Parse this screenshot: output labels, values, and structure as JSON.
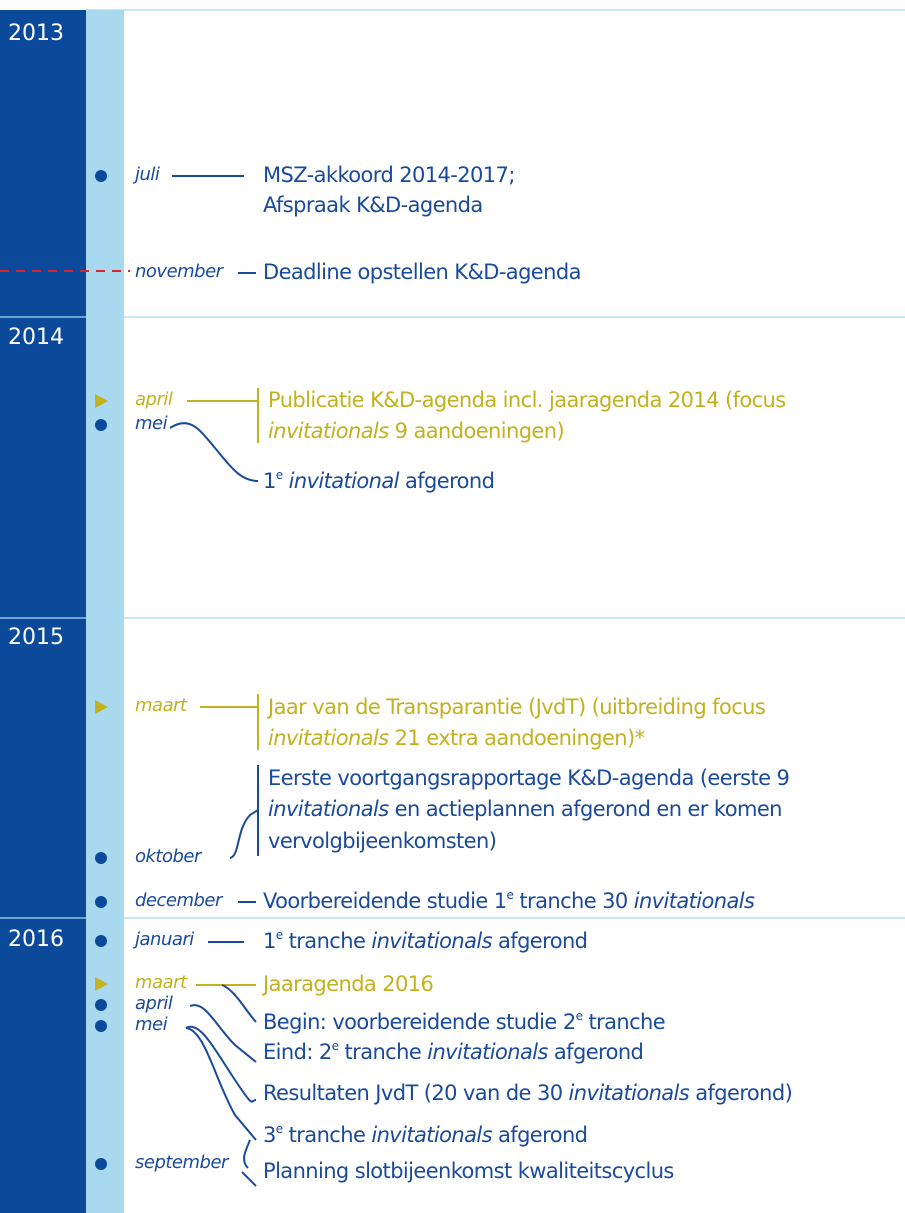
{
  "years": [
    "2013",
    "2014",
    "2015",
    "2016"
  ],
  "months": [
    "juli",
    "november",
    "april",
    "mei",
    "maart",
    "oktober",
    "december",
    "januari",
    "maart",
    "april",
    "mei",
    "september"
  ],
  "lines": [
    [
      "MSZ-akkoord 2014-2017;"
    ],
    [
      "Afspraak K&D-agenda"
    ],
    [
      "Deadline opstellen K&D-agenda"
    ],
    [
      "Publicatie K&D-agenda incl. jaaragenda 2014 (focus"
    ],
    [
      "invitationals",
      " 9 aandoeningen)"
    ],
    [
      "1",
      "e",
      " invitational",
      " afgerond"
    ],
    [
      "Jaar van de Transparantie (JvdT) (uitbreiding focus"
    ],
    [
      "invitationals",
      " 21 extra aandoeningen)*"
    ],
    [
      "Eerste voortgangsrapportage K&D-agenda (eerste 9"
    ],
    [
      "invitationals",
      " en actieplannen afgerond en er komen"
    ],
    [
      "vervolgbijeenkomsten)"
    ],
    [
      "Voorbereidende studie 1",
      "e",
      " tranche 30 ",
      "invitationals"
    ],
    [
      "1",
      "e",
      " tranche ",
      "invitationals",
      " afgerond"
    ],
    [
      "Jaaragenda 2016"
    ],
    [
      "Begin: voorbereidende studie 2",
      "e",
      " tranche"
    ],
    [
      "Eind: 2",
      "e",
      " tranche ",
      "invitationals",
      " afgerond"
    ],
    [
      "Resultaten JvdT (20 van de 30 ",
      "invitationals",
      " afgerond)"
    ],
    [
      "3",
      "e",
      " tranche ",
      "invitationals",
      " afgerond"
    ],
    [
      "Planning slotbijeenkomst kwaliteitscyclus"
    ]
  ]
}
